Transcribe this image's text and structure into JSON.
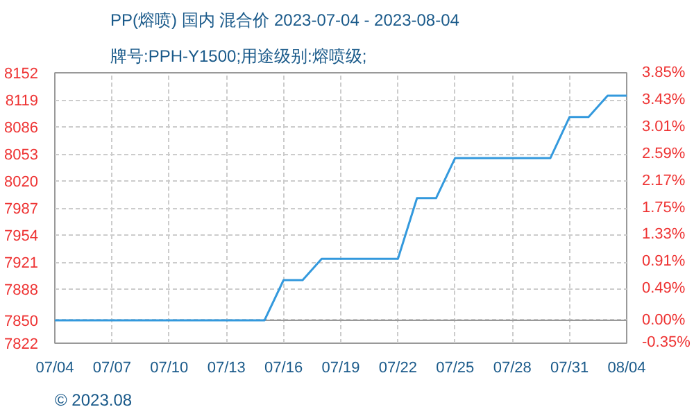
{
  "chart_data": {
    "type": "line",
    "title": "PP(熔喷) 国内 混合价 2023-07-04 - 2023-08-04",
    "subtitle": "牌号:PPH-Y1500;用途级别:熔喷级;",
    "categories": [
      "07/04",
      null,
      null,
      "07/07",
      null,
      null,
      "07/10",
      null,
      null,
      "07/13",
      null,
      null,
      "07/16",
      null,
      null,
      "07/19",
      null,
      null,
      "07/22",
      null,
      null,
      "07/25",
      null,
      null,
      "07/28",
      null,
      null,
      "07/31",
      null,
      null,
      "08/04"
    ],
    "series": [
      {
        "color": "#3399dd",
        "values": [
          7850,
          7850,
          7850,
          7850,
          7850,
          7850,
          7850,
          7850,
          7850,
          7850,
          7850,
          7850,
          7899,
          7899,
          7925,
          7925,
          7925,
          7925,
          7925,
          7999,
          7999,
          8048,
          8048,
          8048,
          8048,
          8048,
          8048,
          8098,
          8098,
          8124,
          8124
        ]
      }
    ],
    "ylim": [
      7822,
      8152
    ],
    "yticks": [
      7822,
      7850,
      7888,
      7921,
      7954,
      7987,
      8020,
      8053,
      8086,
      8119,
      8152
    ],
    "y2lim": [
      -0.36,
      3.85
    ],
    "y2ticks": [
      {
        "value": -0.35,
        "label": "-0.35%"
      },
      {
        "value": 0,
        "label": "0.00%"
      },
      {
        "value": 0.49,
        "label": "0.49%"
      },
      {
        "value": 0.91,
        "label": "0.91%"
      },
      {
        "value": 1.33,
        "label": "1.33%"
      },
      {
        "value": 1.75,
        "label": "1.75%"
      },
      {
        "value": 2.17,
        "label": "2.17%"
      },
      {
        "value": 2.59,
        "label": "2.59%"
      },
      {
        "value": 3.01,
        "label": "3.01%"
      },
      {
        "value": 3.43,
        "label": "3.43%"
      },
      {
        "value": 3.85,
        "label": "3.85%"
      }
    ],
    "ref_lines": [
      {
        "axis": "y",
        "value": 7850,
        "color": "#999999"
      }
    ],
    "grid": true,
    "line_style": "solid",
    "marker": "none",
    "annotations": [
      "© 2023.08"
    ]
  }
}
